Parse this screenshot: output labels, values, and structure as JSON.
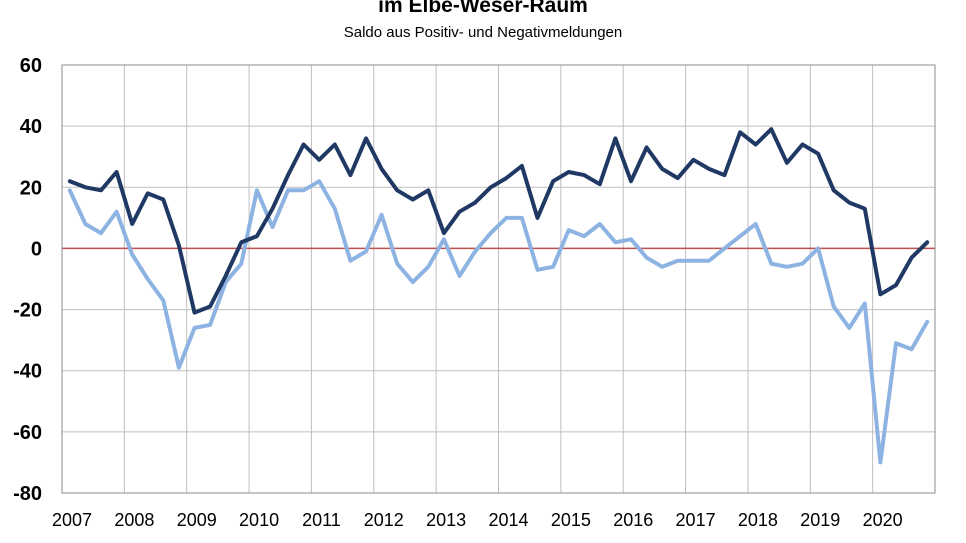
{
  "chart_data": {
    "type": "line",
    "title": "im Elbe-Weser-Raum",
    "subtitle": "Saldo aus Positiv- und Negativmeldungen",
    "xlabel": "",
    "ylabel": "",
    "ylim": [
      -80,
      60
    ],
    "yticks": [
      "60",
      "40",
      "20",
      "0",
      "-20",
      "-40",
      "-60",
      "-80"
    ],
    "xticks": [
      "2007",
      "2008",
      "2009",
      "2010",
      "2011",
      "2012",
      "2013",
      "2014",
      "2015",
      "2016",
      "2017",
      "2018",
      "2019",
      "2020"
    ],
    "grid": true,
    "legend": "none",
    "zero_line_color": "#c0504d",
    "x_step": "quarter",
    "x_start": 2007.0,
    "series": [
      {
        "color": "#1f3864",
        "values": [
          22,
          20,
          19,
          25,
          8,
          18,
          16,
          1,
          -21,
          -19,
          -9,
          2,
          4,
          13,
          24,
          34,
          29,
          34,
          24,
          36,
          26,
          19,
          16,
          19,
          5,
          12,
          15,
          20,
          23,
          27,
          10,
          22,
          25,
          24,
          21,
          36,
          22,
          33,
          26,
          23,
          29,
          26,
          24,
          38,
          34,
          39,
          28,
          34,
          31,
          19,
          15,
          13,
          -15,
          -12,
          -3,
          2
        ]
      },
      {
        "color": "#8db3e2",
        "values": [
          19,
          8,
          5,
          12,
          -2,
          -10,
          -17,
          -39,
          -26,
          -25,
          -11,
          -5,
          19,
          7,
          19,
          19,
          22,
          13,
          -4,
          -1,
          11,
          -5,
          -11,
          -6,
          3,
          -9,
          -1,
          5,
          10,
          10,
          -7,
          -6,
          6,
          4,
          8,
          2,
          3,
          -3,
          -6,
          -4,
          -4,
          -4,
          0,
          4,
          8,
          -5,
          -6,
          -5,
          0,
          -19,
          -26,
          -18,
          -70,
          -31,
          -33,
          -24
        ]
      }
    ]
  }
}
